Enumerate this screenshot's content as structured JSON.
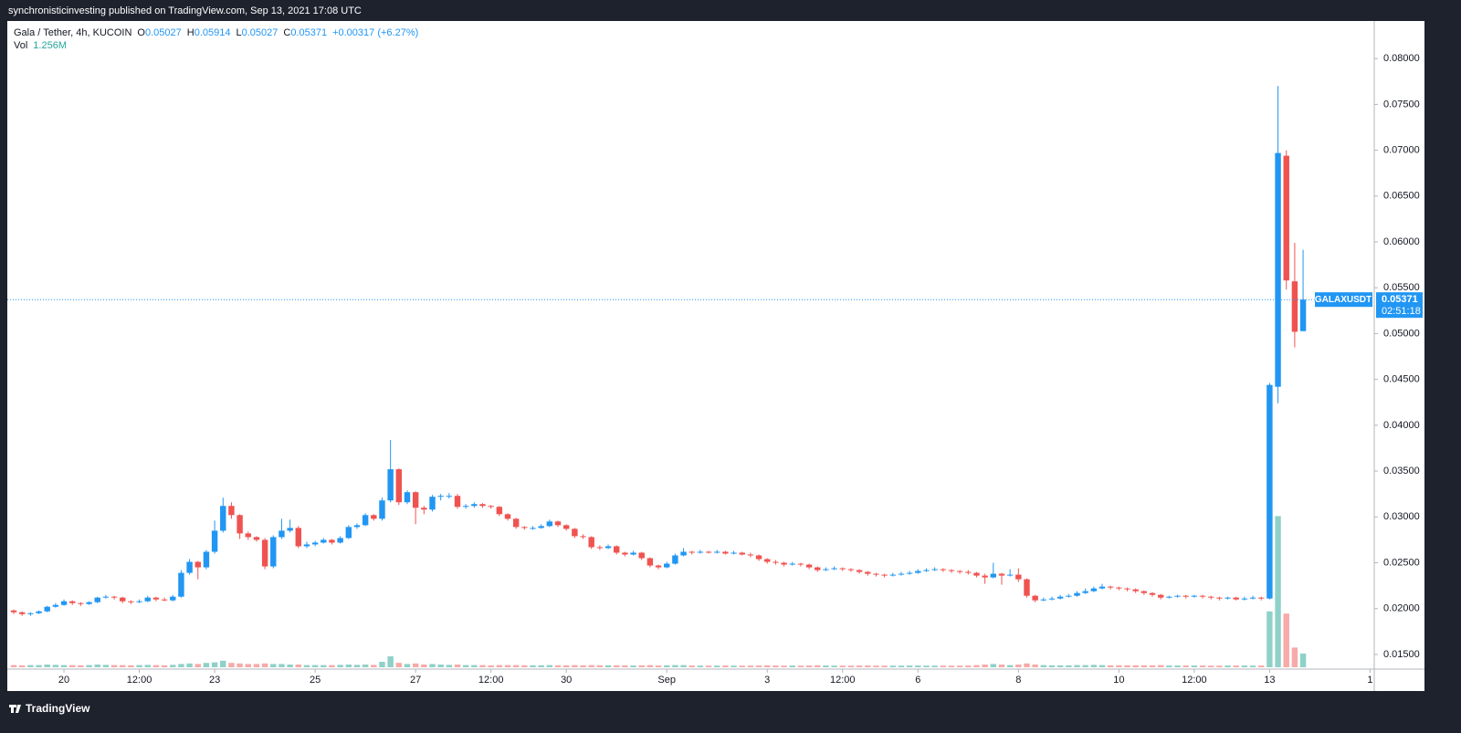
{
  "header": {
    "title": "synchronisticinvesting published on TradingView.com, Sep 13, 2021 17:08 UTC"
  },
  "footer": {
    "brand": "TradingView"
  },
  "chart_data": {
    "type": "candlestick",
    "legend": {
      "symbol": "Gala / Tether, 4h, KUCOIN",
      "field_labels": [
        "O",
        "H",
        "L",
        "C"
      ],
      "change": "+0.00317 (+6.27%)",
      "volume_label": "Vol",
      "volume_value": "1.256M"
    },
    "symbol_tag": "GALAXUSDT",
    "countdown": "02:51:18",
    "up_color": "#2196f3",
    "down_color": "#ef5350",
    "volume_up_color": "#8fd1c8",
    "volume_down_color": "#f7aaa8",
    "xlim": [
      -0.55,
      162.5
    ],
    "xticks": [
      {
        "value": 6,
        "label": "20"
      },
      {
        "value": 15,
        "label": "12:00"
      },
      {
        "value": 24,
        "label": "23"
      },
      {
        "value": 36,
        "label": "25"
      },
      {
        "value": 48,
        "label": "27"
      },
      {
        "value": 57,
        "label": "12:00"
      },
      {
        "value": 66,
        "label": "30"
      },
      {
        "value": 78,
        "label": "Sep"
      },
      {
        "value": 90,
        "label": "3"
      },
      {
        "value": 99,
        "label": "12:00"
      },
      {
        "value": 108,
        "label": "6"
      },
      {
        "value": 120,
        "label": "8"
      },
      {
        "value": 132,
        "label": "10"
      },
      {
        "value": 141,
        "label": "12:00"
      },
      {
        "value": 150,
        "label": "13"
      },
      {
        "value": 162,
        "label": "1"
      }
    ],
    "ylim": [
      0.0136,
      0.0841
    ],
    "yticks": [
      {
        "value": 0.015,
        "label": "0.01500"
      },
      {
        "value": 0.02,
        "label": "0.02000"
      },
      {
        "value": 0.025,
        "label": "0.02500"
      },
      {
        "value": 0.03,
        "label": "0.03000"
      },
      {
        "value": 0.035,
        "label": "0.03500"
      },
      {
        "value": 0.04,
        "label": "0.04000"
      },
      {
        "value": 0.045,
        "label": "0.04500"
      },
      {
        "value": 0.05,
        "label": "0.05000"
      },
      {
        "value": 0.055,
        "label": "0.05500"
      },
      {
        "value": 0.06,
        "label": "0.06000"
      },
      {
        "value": 0.065,
        "label": "0.06500"
      },
      {
        "value": 0.07,
        "label": "0.07000"
      },
      {
        "value": 0.075,
        "label": "0.07500"
      },
      {
        "value": 0.08,
        "label": "0.08000"
      }
    ],
    "volume_lim": [
      0,
      59
    ],
    "open": [
      0.0198,
      0.0196,
      0.0194,
      0.0195,
      0.0197,
      0.0202,
      0.0204,
      0.0208,
      0.0206,
      0.0205,
      0.0207,
      0.0212,
      0.0213,
      0.0212,
      0.0208,
      0.0207,
      0.0208,
      0.0212,
      0.021,
      0.0209,
      0.0213,
      0.0239,
      0.0251,
      0.0245,
      0.0262,
      0.0285,
      0.0312,
      0.0302,
      0.0282,
      0.0278,
      0.0275,
      0.0246,
      0.0278,
      0.0285,
      0.0288,
      0.0268,
      0.027,
      0.0272,
      0.0275,
      0.0272,
      0.0277,
      0.0289,
      0.0291,
      0.0302,
      0.0298,
      0.0318,
      0.0352,
      0.0316,
      0.0327,
      0.031,
      0.0308,
      0.0322,
      0.0323,
      0.0323,
      0.0311,
      0.0312,
      0.0314,
      0.0312,
      0.0311,
      0.0303,
      0.0298,
      0.0289,
      0.0288,
      0.0288,
      0.029,
      0.0295,
      0.0291,
      0.0287,
      0.0279,
      0.0278,
      0.0267,
      0.0266,
      0.0268,
      0.0261,
      0.0259,
      0.0261,
      0.0255,
      0.0247,
      0.0245,
      0.0249,
      0.0258,
      0.0262,
      0.0261,
      0.0262,
      0.0261,
      0.0262,
      0.026,
      0.0261,
      0.0259,
      0.0258,
      0.0254,
      0.0251,
      0.025,
      0.0248,
      0.0249,
      0.0248,
      0.0245,
      0.0242,
      0.0243,
      0.0244,
      0.0243,
      0.0242,
      0.024,
      0.0238,
      0.0237,
      0.0236,
      0.0237,
      0.0238,
      0.0239,
      0.0241,
      0.0242,
      0.0243,
      0.0242,
      0.0241,
      0.024,
      0.0239,
      0.0236,
      0.0234,
      0.0238,
      0.0236,
      0.0237,
      0.0232,
      0.0214,
      0.0209,
      0.021,
      0.0211,
      0.0213,
      0.0214,
      0.0217,
      0.0219,
      0.0222,
      0.0224,
      0.0223,
      0.0222,
      0.0221,
      0.0219,
      0.0217,
      0.0215,
      0.0212,
      0.0213,
      0.0214,
      0.0213,
      0.0214,
      0.0213,
      0.0212,
      0.0211,
      0.0212,
      0.021,
      0.0211,
      0.0212,
      0.0211,
      0.0442,
      0.0694,
      0.0557,
      0.05027
    ],
    "high": [
      0.0199,
      0.0197,
      0.0196,
      0.0198,
      0.0203,
      0.0206,
      0.021,
      0.0209,
      0.0207,
      0.0208,
      0.0213,
      0.0215,
      0.0214,
      0.0213,
      0.0209,
      0.021,
      0.0214,
      0.0213,
      0.0212,
      0.0215,
      0.0242,
      0.0254,
      0.0252,
      0.0264,
      0.0296,
      0.0321,
      0.0316,
      0.0303,
      0.0284,
      0.0279,
      0.0277,
      0.028,
      0.0298,
      0.0297,
      0.029,
      0.0273,
      0.0274,
      0.0277,
      0.0276,
      0.0279,
      0.0291,
      0.0293,
      0.0304,
      0.0303,
      0.0321,
      0.0384,
      0.0353,
      0.0329,
      0.0328,
      0.0312,
      0.0324,
      0.0325,
      0.0326,
      0.0325,
      0.0314,
      0.0316,
      0.0315,
      0.0313,
      0.0312,
      0.0304,
      0.0299,
      0.029,
      0.029,
      0.0292,
      0.0297,
      0.0296,
      0.0292,
      0.0288,
      0.0281,
      0.0279,
      0.0269,
      0.027,
      0.0269,
      0.0262,
      0.0263,
      0.0262,
      0.0256,
      0.0248,
      0.0251,
      0.026,
      0.0266,
      0.0263,
      0.0264,
      0.0263,
      0.0264,
      0.0263,
      0.0263,
      0.0262,
      0.0261,
      0.0259,
      0.0255,
      0.0253,
      0.0251,
      0.0251,
      0.025,
      0.0249,
      0.0246,
      0.0245,
      0.0246,
      0.0245,
      0.0244,
      0.0243,
      0.0241,
      0.0239,
      0.0238,
      0.0239,
      0.024,
      0.0241,
      0.0243,
      0.0244,
      0.0245,
      0.0244,
      0.0243,
      0.0242,
      0.0242,
      0.024,
      0.0238,
      0.025,
      0.0239,
      0.0243,
      0.0244,
      0.0233,
      0.0215,
      0.0212,
      0.0213,
      0.0215,
      0.0216,
      0.0219,
      0.0222,
      0.0224,
      0.0227,
      0.0225,
      0.0224,
      0.0223,
      0.0222,
      0.022,
      0.0218,
      0.0216,
      0.0214,
      0.0215,
      0.0215,
      0.0215,
      0.0215,
      0.0214,
      0.0213,
      0.0213,
      0.0213,
      0.0213,
      0.0214,
      0.0213,
      0.0446,
      0.077,
      0.07,
      0.0599,
      0.05914
    ],
    "low": [
      0.0194,
      0.0192,
      0.0192,
      0.0194,
      0.0196,
      0.0201,
      0.0203,
      0.0204,
      0.0203,
      0.0204,
      0.0206,
      0.0211,
      0.021,
      0.0206,
      0.0205,
      0.0206,
      0.0207,
      0.0208,
      0.0208,
      0.0208,
      0.0212,
      0.0237,
      0.0232,
      0.0243,
      0.026,
      0.0283,
      0.0298,
      0.0276,
      0.0275,
      0.0273,
      0.0243,
      0.0244,
      0.0276,
      0.0283,
      0.0266,
      0.0266,
      0.0268,
      0.0271,
      0.027,
      0.0271,
      0.0276,
      0.0287,
      0.029,
      0.0296,
      0.0296,
      0.0316,
      0.0313,
      0.0314,
      0.0292,
      0.0303,
      0.0306,
      0.0318,
      0.032,
      0.0309,
      0.0309,
      0.031,
      0.031,
      0.0309,
      0.0301,
      0.0296,
      0.0287,
      0.0286,
      0.0286,
      0.0287,
      0.0289,
      0.0289,
      0.0285,
      0.0277,
      0.0276,
      0.0265,
      0.0264,
      0.0265,
      0.0259,
      0.0257,
      0.0258,
      0.0253,
      0.0245,
      0.0243,
      0.0244,
      0.0248,
      0.0257,
      0.0259,
      0.026,
      0.026,
      0.026,
      0.0259,
      0.0259,
      0.0258,
      0.0256,
      0.0252,
      0.0249,
      0.0248,
      0.0246,
      0.0247,
      0.0246,
      0.0243,
      0.024,
      0.0241,
      0.0242,
      0.0241,
      0.024,
      0.0238,
      0.0236,
      0.0235,
      0.0234,
      0.0235,
      0.0236,
      0.0237,
      0.0238,
      0.024,
      0.0241,
      0.024,
      0.0239,
      0.0238,
      0.0237,
      0.0234,
      0.0227,
      0.0233,
      0.0226,
      0.0235,
      0.0229,
      0.0212,
      0.0207,
      0.0208,
      0.0209,
      0.021,
      0.0212,
      0.0213,
      0.0216,
      0.0218,
      0.0221,
      0.0221,
      0.022,
      0.0219,
      0.0217,
      0.0215,
      0.0213,
      0.021,
      0.0211,
      0.0212,
      0.0211,
      0.0212,
      0.0211,
      0.021,
      0.0209,
      0.021,
      0.0209,
      0.0209,
      0.021,
      0.0209,
      0.021,
      0.0424,
      0.0548,
      0.0485,
      0.05027
    ],
    "close": [
      0.0196,
      0.0194,
      0.0195,
      0.0197,
      0.0202,
      0.0204,
      0.0208,
      0.0206,
      0.0205,
      0.0207,
      0.0212,
      0.0213,
      0.0212,
      0.0208,
      0.0207,
      0.0208,
      0.0212,
      0.021,
      0.0209,
      0.0213,
      0.0239,
      0.0251,
      0.0245,
      0.0262,
      0.0285,
      0.0312,
      0.0302,
      0.0282,
      0.0278,
      0.0275,
      0.0246,
      0.0278,
      0.0285,
      0.0288,
      0.0268,
      0.027,
      0.0272,
      0.0275,
      0.0272,
      0.0277,
      0.0289,
      0.0291,
      0.0302,
      0.0298,
      0.0318,
      0.0352,
      0.0316,
      0.0327,
      0.031,
      0.0308,
      0.0322,
      0.0323,
      0.0323,
      0.0311,
      0.0312,
      0.0314,
      0.0312,
      0.0311,
      0.0303,
      0.0298,
      0.0289,
      0.0288,
      0.0288,
      0.029,
      0.0295,
      0.0291,
      0.0287,
      0.0279,
      0.0278,
      0.0267,
      0.0266,
      0.0268,
      0.0261,
      0.0259,
      0.0261,
      0.0255,
      0.0247,
      0.0245,
      0.0249,
      0.0258,
      0.0262,
      0.0261,
      0.0262,
      0.0261,
      0.0262,
      0.026,
      0.0261,
      0.0259,
      0.0258,
      0.0254,
      0.0251,
      0.025,
      0.0248,
      0.0249,
      0.0248,
      0.0245,
      0.0242,
      0.0243,
      0.0244,
      0.0243,
      0.0242,
      0.024,
      0.0238,
      0.0237,
      0.0236,
      0.0237,
      0.0238,
      0.0239,
      0.0241,
      0.0242,
      0.0243,
      0.0242,
      0.0241,
      0.024,
      0.0239,
      0.0236,
      0.0234,
      0.0238,
      0.0236,
      0.0237,
      0.0232,
      0.0214,
      0.0209,
      0.021,
      0.0211,
      0.0213,
      0.0214,
      0.0217,
      0.0219,
      0.0222,
      0.0224,
      0.0223,
      0.0222,
      0.0221,
      0.0219,
      0.0217,
      0.0215,
      0.0212,
      0.0213,
      0.0214,
      0.0213,
      0.0214,
      0.0213,
      0.0212,
      0.0211,
      0.0212,
      0.021,
      0.0211,
      0.0212,
      0.0211,
      0.0444,
      0.0697,
      0.0558,
      0.0502,
      0.05371
    ],
    "volume": [
      0.2,
      0.18,
      0.2,
      0.2,
      0.25,
      0.22,
      0.2,
      0.2,
      0.18,
      0.2,
      0.25,
      0.22,
      0.2,
      0.2,
      0.18,
      0.2,
      0.22,
      0.2,
      0.18,
      0.22,
      0.3,
      0.35,
      0.3,
      0.4,
      0.45,
      0.6,
      0.4,
      0.35,
      0.3,
      0.3,
      0.35,
      0.3,
      0.3,
      0.25,
      0.25,
      0.2,
      0.2,
      0.2,
      0.2,
      0.22,
      0.25,
      0.22,
      0.25,
      0.22,
      0.5,
      1.0,
      0.4,
      0.3,
      0.35,
      0.25,
      0.3,
      0.25,
      0.22,
      0.25,
      0.2,
      0.2,
      0.2,
      0.18,
      0.2,
      0.2,
      0.2,
      0.18,
      0.18,
      0.18,
      0.2,
      0.18,
      0.18,
      0.2,
      0.18,
      0.2,
      0.18,
      0.18,
      0.18,
      0.18,
      0.16,
      0.18,
      0.2,
      0.16,
      0.18,
      0.2,
      0.2,
      0.16,
      0.15,
      0.15,
      0.15,
      0.16,
      0.15,
      0.15,
      0.15,
      0.16,
      0.18,
      0.16,
      0.15,
      0.16,
      0.15,
      0.16,
      0.18,
      0.16,
      0.15,
      0.15,
      0.15,
      0.16,
      0.16,
      0.15,
      0.15,
      0.15,
      0.15,
      0.16,
      0.16,
      0.15,
      0.15,
      0.15,
      0.15,
      0.15,
      0.16,
      0.2,
      0.25,
      0.3,
      0.25,
      0.2,
      0.25,
      0.35,
      0.25,
      0.2,
      0.18,
      0.18,
      0.18,
      0.2,
      0.2,
      0.22,
      0.2,
      0.18,
      0.18,
      0.18,
      0.18,
      0.18,
      0.18,
      0.2,
      0.16,
      0.16,
      0.16,
      0.16,
      0.16,
      0.15,
      0.15,
      0.16,
      0.16,
      0.16,
      0.15,
      0.16,
      5.1,
      13.8,
      4.9,
      1.8,
      1.256
    ]
  }
}
